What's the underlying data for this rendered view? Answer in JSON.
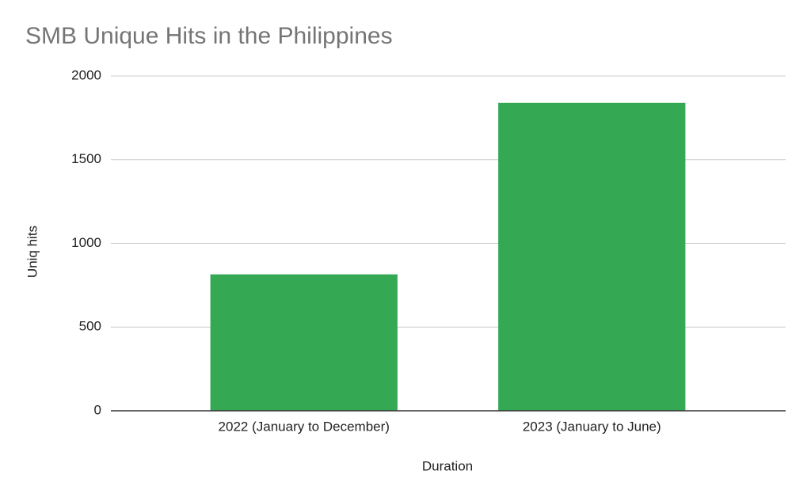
{
  "chart_data": {
    "type": "bar",
    "title": "SMB Unique Hits in the Philippines",
    "x_label": "Duration",
    "y_label": "Uniq hits",
    "categories": [
      "2022 (January to December)",
      "2023 (January to June)"
    ],
    "values": [
      815,
      1840
    ],
    "color": "#34a853",
    "ylim": [
      0,
      2000
    ],
    "yticks": [
      0,
      500,
      1000,
      1500,
      2000
    ],
    "grid": true
  }
}
